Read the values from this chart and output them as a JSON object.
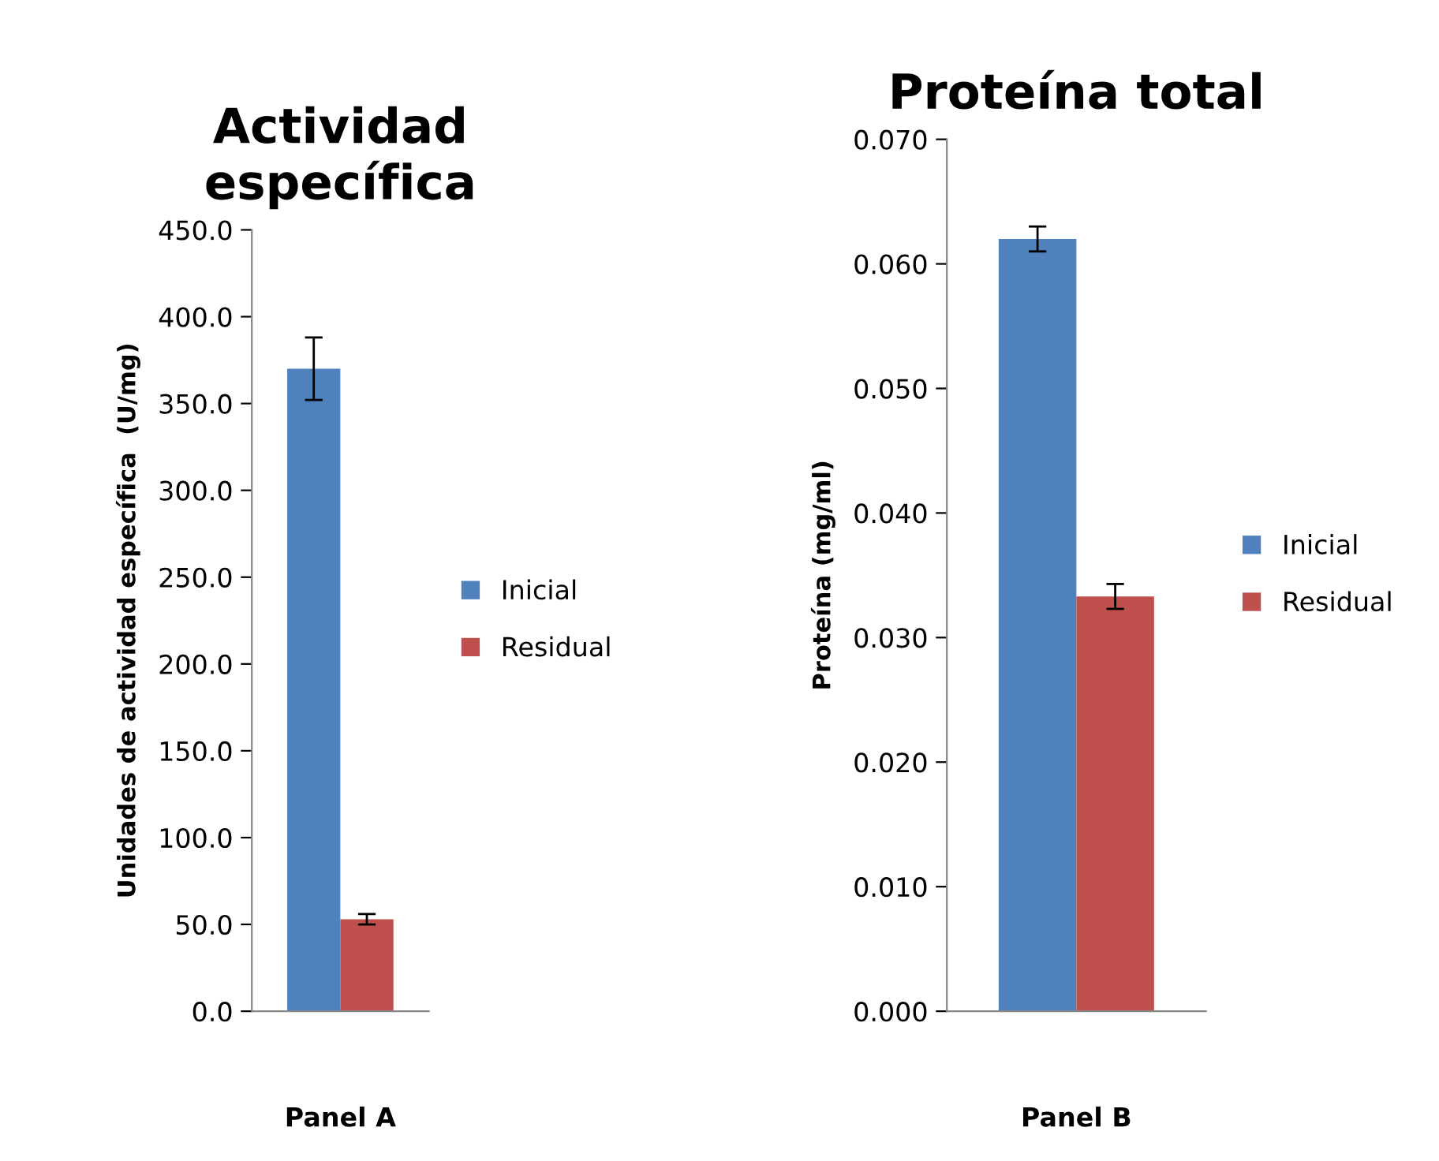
{
  "chart_data": [
    {
      "type": "bar",
      "title": "Actividad\nespecífica",
      "xlabel": "Panel A",
      "ylabel": "Unidades de actividad específica  (U/mg)",
      "categories": [
        null
      ],
      "series": [
        {
          "name": "Inicial",
          "color": "#4f81bd",
          "values": [
            370
          ],
          "errors": [
            18
          ]
        },
        {
          "name": "Residual",
          "color": "#c0504d",
          "values": [
            53
          ],
          "errors": [
            3
          ]
        }
      ],
      "ylim": [
        0,
        450
      ],
      "yticks": [
        {
          "value": 0,
          "label": "0.0"
        },
        {
          "value": 50,
          "label": "50.0"
        },
        {
          "value": 100,
          "label": "100.0"
        },
        {
          "value": 150,
          "label": "150.0"
        },
        {
          "value": 200,
          "label": "200.0"
        },
        {
          "value": 250,
          "label": "250.0"
        },
        {
          "value": 300,
          "label": "300.0"
        },
        {
          "value": 350,
          "label": "350.0"
        },
        {
          "value": 400,
          "label": "400.0"
        },
        {
          "value": 450,
          "label": "450.0"
        }
      ],
      "grid": false,
      "legend": "right"
    },
    {
      "type": "bar",
      "title": "Proteína total",
      "xlabel": "Panel B",
      "ylabel": "Proteína (mg/ml)",
      "categories": [
        null
      ],
      "series": [
        {
          "name": "Inicial",
          "color": "#4f81bd",
          "values": [
            0.062
          ],
          "errors": [
            0.001
          ]
        },
        {
          "name": "Residual",
          "color": "#c0504d",
          "values": [
            0.0333
          ],
          "errors": [
            0.001
          ]
        }
      ],
      "ylim": [
        0,
        0.07
      ],
      "yticks": [
        {
          "value": 0,
          "label": "0.000"
        },
        {
          "value": 0.01,
          "label": "0.010"
        },
        {
          "value": 0.02,
          "label": "0.020"
        },
        {
          "value": 0.03,
          "label": "0.030"
        },
        {
          "value": 0.04,
          "label": "0.040"
        },
        {
          "value": 0.05,
          "label": "0.050"
        },
        {
          "value": 0.06,
          "label": "0.060"
        },
        {
          "value": 0.07,
          "label": "0.070"
        }
      ],
      "grid": false,
      "legend": "right"
    }
  ]
}
